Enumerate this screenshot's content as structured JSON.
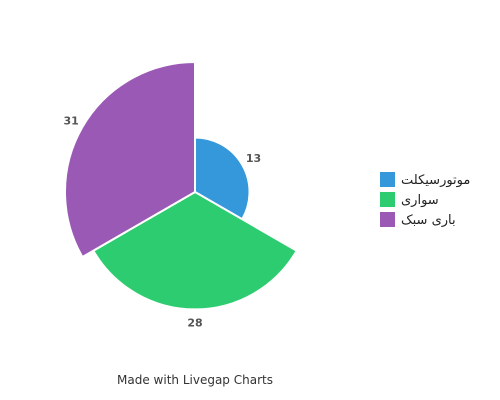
{
  "chart_data": {
    "type": "pie",
    "subtype": "polar-area",
    "categories": [
      "موتورسیکلت",
      "سواری",
      "باری سبک"
    ],
    "values": [
      13,
      28,
      31
    ],
    "colors": [
      "#3498db",
      "#2ecc71",
      "#9b59b6"
    ],
    "title": "",
    "legend": {
      "placement": "right",
      "entries": [
        "موتورسیکلت",
        "سواری",
        "باری سبک"
      ]
    }
  },
  "footer": {
    "text": "Made with Livegap Charts"
  }
}
